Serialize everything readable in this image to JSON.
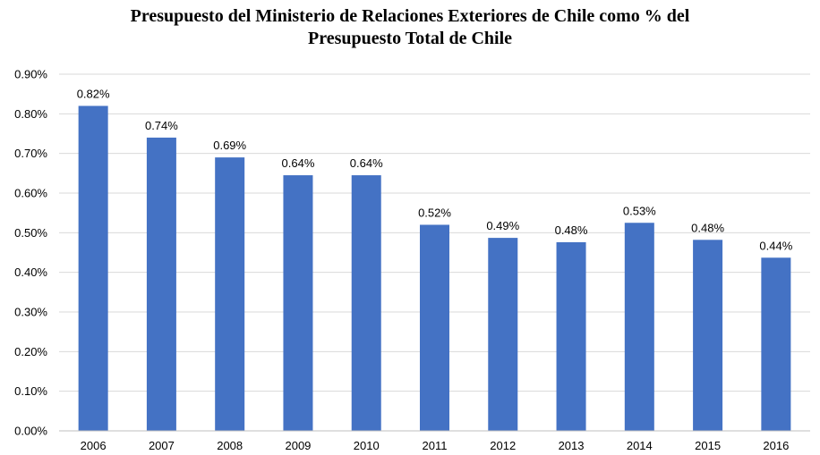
{
  "chart_data": {
    "type": "bar",
    "title_line1": "Presupuesto del Ministerio de Relaciones Exteriores de Chile como % del",
    "title_line2": "Presupuesto Total de Chile",
    "categories": [
      "2006",
      "2007",
      "2008",
      "2009",
      "2010",
      "2011",
      "2012",
      "2013",
      "2014",
      "2015",
      "2016"
    ],
    "values": [
      0.82,
      0.74,
      0.69,
      0.645,
      0.645,
      0.52,
      0.487,
      0.476,
      0.525,
      0.482,
      0.437
    ],
    "data_labels": [
      "0.82%",
      "0.74%",
      "0.69%",
      "0.64%",
      "0.64%",
      "0.52%",
      "0.49%",
      "0.48%",
      "0.53%",
      "0.48%",
      "0.44%"
    ],
    "yticks": [
      0,
      0.1,
      0.2,
      0.3,
      0.4,
      0.5,
      0.6,
      0.7,
      0.8,
      0.9
    ],
    "ytick_labels": [
      "0.00%",
      "0.10%",
      "0.20%",
      "0.30%",
      "0.40%",
      "0.50%",
      "0.60%",
      "0.70%",
      "0.80%",
      "0.90%"
    ],
    "ylim": [
      0,
      0.9
    ],
    "grid": true,
    "bar_color": "#4472C4",
    "grid_color": "#d9d9d9",
    "axis_color": "#bfbfbf"
  }
}
